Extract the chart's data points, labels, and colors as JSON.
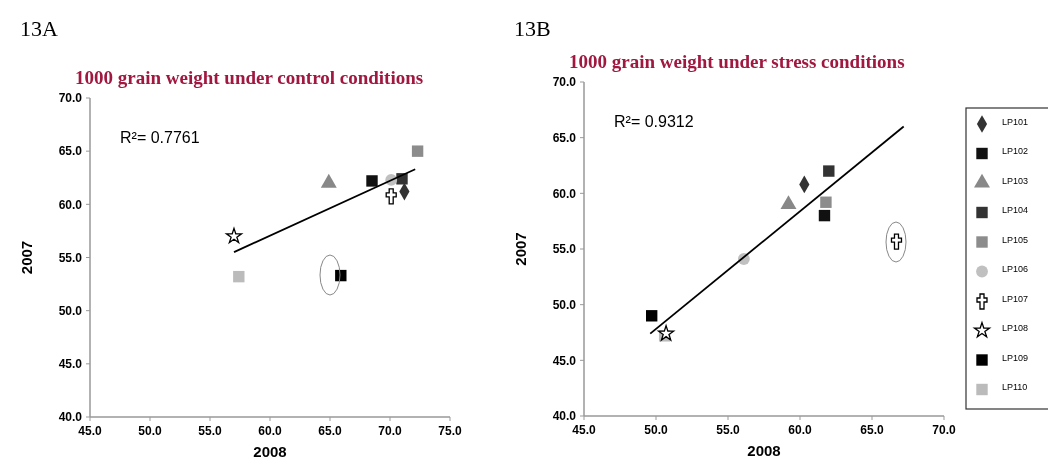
{
  "chart_data": [
    {
      "type": "scatter",
      "title": "13A",
      "subtitle": "1000 grain weight under control conditions",
      "xlabel": "2008",
      "ylabel": "2007",
      "xlim": [
        45,
        75
      ],
      "ylim": [
        40,
        70
      ],
      "xticks": [
        {
          "value": 45,
          "label": "45.0"
        },
        {
          "value": 50,
          "label": "50.0"
        },
        {
          "value": 55,
          "label": "55.0"
        },
        {
          "value": 60,
          "label": "60.0"
        },
        {
          "value": 65,
          "label": "65.0"
        },
        {
          "value": 70,
          "label": "70.0"
        },
        {
          "value": 75,
          "label": "75.0"
        }
      ],
      "yticks": [
        {
          "value": 40,
          "label": "40.0"
        },
        {
          "value": 45,
          "label": "45.0"
        },
        {
          "value": 50,
          "label": "50.0"
        },
        {
          "value": 55,
          "label": "55.0"
        },
        {
          "value": 60,
          "label": "60.0"
        },
        {
          "value": 65,
          "label": "65.0"
        },
        {
          "value": 70,
          "label": "70.0"
        }
      ],
      "annotations": [
        "R²= 0.7761"
      ],
      "legend": false,
      "grid": false,
      "series": [
        {
          "marker": "diamond",
          "color": "#333333",
          "x": [
            71.2
          ],
          "values": [
            61.2
          ]
        },
        {
          "marker": "square",
          "color": "#111111",
          "x": [
            68.5
          ],
          "values": [
            62.2
          ]
        },
        {
          "marker": "triangle",
          "color": "#888888",
          "x": [
            64.9
          ],
          "values": [
            62.0
          ]
        },
        {
          "marker": "square",
          "color": "#333333",
          "x": [
            71.0
          ],
          "values": [
            62.4
          ]
        },
        {
          "marker": "square",
          "color": "#8c8c8c",
          "x": [
            72.3
          ],
          "values": [
            65.0
          ]
        },
        {
          "marker": "circle",
          "color": "#c0c0c0",
          "x": [
            70.1
          ],
          "values": [
            62.3
          ]
        },
        {
          "marker": "cross",
          "color": "#000000",
          "x": [
            70.1
          ],
          "values": [
            60.8
          ]
        },
        {
          "marker": "star",
          "color": "#000000",
          "x": [
            57.0
          ],
          "values": [
            57.0
          ]
        },
        {
          "marker": "square",
          "color": "#000000",
          "x": [
            65.9
          ],
          "values": [
            53.3
          ]
        },
        {
          "marker": "square",
          "color": "#bbbbbb",
          "x": [
            57.4
          ],
          "values": [
            53.2
          ]
        },
        {
          "type": "line",
          "color": "#000000",
          "marker": "none",
          "x": [
            57.0,
            72.1
          ],
          "values": [
            55.5,
            63.3
          ]
        }
      ]
    },
    {
      "type": "scatter",
      "title": "13B",
      "subtitle": "1000 grain weight under stress conditions",
      "xlabel": "2008",
      "ylabel": "2007",
      "xlim": [
        45,
        70
      ],
      "ylim": [
        40,
        70
      ],
      "xticks": [
        {
          "value": 45,
          "label": "45.0"
        },
        {
          "value": 50,
          "label": "50.0"
        },
        {
          "value": 55,
          "label": "55.0"
        },
        {
          "value": 60,
          "label": "60.0"
        },
        {
          "value": 65,
          "label": "65.0"
        },
        {
          "value": 70,
          "label": "70.0"
        }
      ],
      "yticks": [
        {
          "value": 40,
          "label": "40.0"
        },
        {
          "value": 45,
          "label": "45.0"
        },
        {
          "value": 50,
          "label": "50.0"
        },
        {
          "value": 55,
          "label": "55.0"
        },
        {
          "value": 60,
          "label": "60.0"
        },
        {
          "value": 65,
          "label": "65.0"
        },
        {
          "value": 70,
          "label": "70.0"
        }
      ],
      "annotations": [
        "R²= 0.9312"
      ],
      "legend": "right",
      "grid": false,
      "series": [
        {
          "name": "LP101",
          "marker": "diamond",
          "color": "#333333",
          "x": [
            60.3
          ],
          "values": [
            60.8
          ]
        },
        {
          "name": "LP102",
          "marker": "square",
          "color": "#111111",
          "x": [
            61.7
          ],
          "values": [
            58.0
          ]
        },
        {
          "name": "LP103",
          "marker": "triangle",
          "color": "#888888",
          "x": [
            59.2
          ],
          "values": [
            59.0
          ]
        },
        {
          "name": "LP104",
          "marker": "square",
          "color": "#333333",
          "x": [
            62.0
          ],
          "values": [
            62.0
          ]
        },
        {
          "name": "LP105",
          "marker": "square",
          "color": "#8c8c8c",
          "x": [
            61.8
          ],
          "values": [
            59.2
          ]
        },
        {
          "name": "LP106",
          "marker": "circle",
          "color": "#c0c0c0",
          "x": [
            56.1
          ],
          "values": [
            54.1
          ]
        },
        {
          "name": "LP107",
          "marker": "cross",
          "color": "#000000",
          "x": [
            66.7
          ],
          "values": [
            55.7
          ]
        },
        {
          "name": "LP108",
          "marker": "star",
          "color": "#000000",
          "x": [
            50.7
          ],
          "values": [
            47.4
          ]
        },
        {
          "name": "LP109",
          "marker": "square",
          "color": "#000000",
          "x": [
            49.7
          ],
          "values": [
            49.0
          ]
        },
        {
          "name": "LP110",
          "marker": "square",
          "color": "#bbbbbb",
          "x": [
            50.6
          ],
          "values": [
            47.2
          ]
        },
        {
          "type": "line",
          "color": "#000000",
          "marker": "none",
          "x": [
            49.6,
            67.2
          ],
          "values": [
            47.4,
            66.0
          ]
        }
      ]
    }
  ]
}
